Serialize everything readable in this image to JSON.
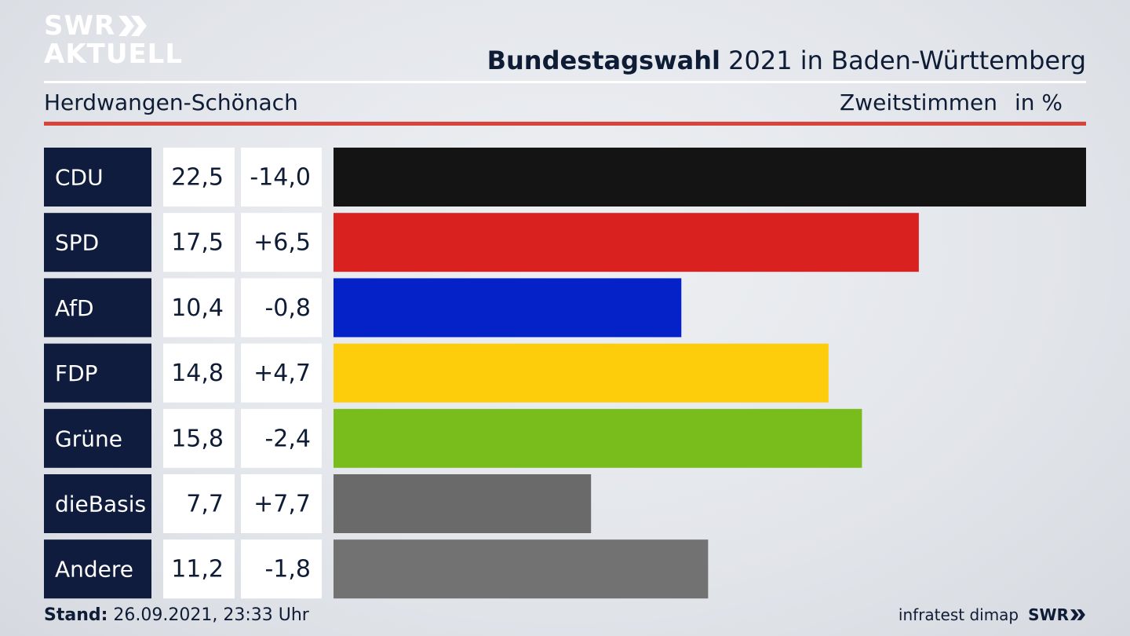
{
  "brand": {
    "line1": "SWR",
    "line2": "AKTUELL"
  },
  "header": {
    "title_bold": "Bundestagswahl",
    "title_rest": " 2021 in Baden-Württemberg",
    "region": "Herdwangen-Schönach",
    "measure": "Zweitstimmen",
    "unit": "in %"
  },
  "footer": {
    "stand_label": "Stand:",
    "stand_value": " 26.09.2021, 23:33 Uhr",
    "source": "infratest dimap",
    "broadcaster": "SWR"
  },
  "colors": {
    "label_bg": "#0f1c3d",
    "cell_bg": "#ffffff",
    "accent_red": "#d8443b"
  },
  "chart_data": {
    "type": "bar",
    "orientation": "horizontal",
    "categories": [
      "CDU",
      "SPD",
      "AfD",
      "FDP",
      "Grüne",
      "dieBasis",
      "Andere"
    ],
    "values": [
      22.5,
      17.5,
      10.4,
      14.8,
      15.8,
      7.7,
      11.2
    ],
    "value_labels": [
      "22,5",
      "17,5",
      "10,4",
      "14,8",
      "15,8",
      "7,7",
      "11,2"
    ],
    "changes": [
      -14.0,
      6.5,
      -0.8,
      4.7,
      -2.4,
      7.7,
      -1.8
    ],
    "change_labels": [
      "-14,0",
      "+6,5",
      "-0,8",
      "+4,7",
      "-2,4",
      "+7,7",
      "-1,8"
    ],
    "bar_colors": [
      "#141414",
      "#d92120",
      "#0422c8",
      "#fdcc0a",
      "#79bd1c",
      "#6a6a6a",
      "#727272"
    ],
    "xlim": [
      0,
      22.5
    ],
    "grid": false
  }
}
